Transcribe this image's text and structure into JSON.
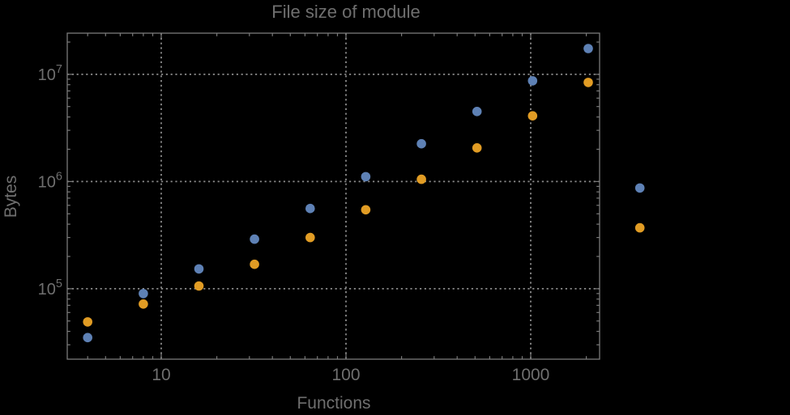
{
  "chart": {
    "title": "File size of module",
    "xlabel": "Functions",
    "ylabel": "Bytes"
  },
  "colors": {
    "background": "#000000",
    "frame": "#7a7a7a",
    "grid": "#8a8a8a",
    "text": "#6f6f6f",
    "series1": "#5e81b5",
    "series2": "#e19c24"
  },
  "chart_data": {
    "type": "scatter",
    "title": "File size of module",
    "xlabel": "Functions",
    "ylabel": "Bytes",
    "xscale": "log",
    "yscale": "log",
    "xlim": [
      3.1,
      2360
    ],
    "ylim": [
      22000,
      24200000
    ],
    "xticks": [
      10,
      100,
      1000
    ],
    "yticks": [
      100000,
      1000000,
      10000000
    ],
    "grid": true,
    "legend": "none",
    "point_radius_px": 5.8,
    "series": [
      {
        "name": "series-1-blue",
        "color": "#5e81b5",
        "points": [
          [
            4,
            35000
          ],
          [
            8,
            90000
          ],
          [
            16,
            153000
          ],
          [
            32,
            290000
          ],
          [
            64,
            560000
          ],
          [
            128,
            1110000
          ],
          [
            256,
            2250000
          ],
          [
            512,
            4500000
          ],
          [
            1024,
            8700000
          ],
          [
            2048,
            17400000
          ],
          [
            3900,
            870000
          ]
        ]
      },
      {
        "name": "series-2-orange",
        "color": "#e19c24",
        "points": [
          [
            4,
            49000
          ],
          [
            8,
            72000
          ],
          [
            16,
            106000
          ],
          [
            32,
            169000
          ],
          [
            64,
            300000
          ],
          [
            128,
            545000
          ],
          [
            256,
            1050000
          ],
          [
            512,
            2060000
          ],
          [
            1024,
            4100000
          ],
          [
            2048,
            8400000
          ],
          [
            3900,
            370000
          ]
        ]
      }
    ]
  }
}
